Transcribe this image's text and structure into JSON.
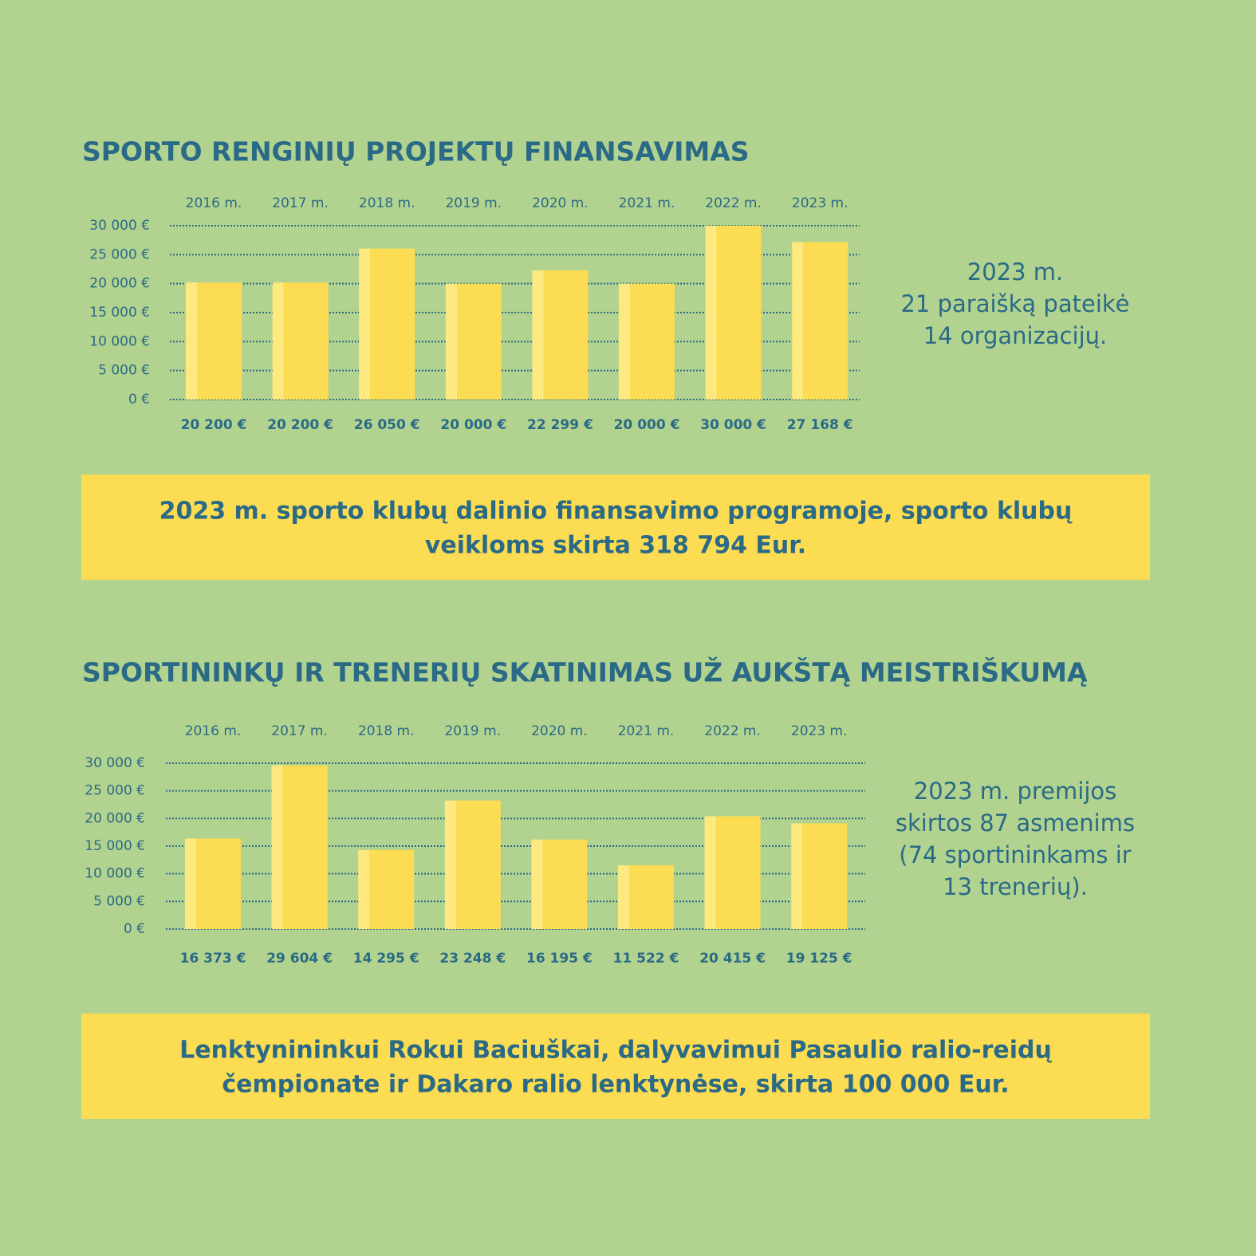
{
  "chart_data": [
    {
      "type": "bar",
      "title": "SPORTO RENGINIŲ PROJEKTŲ FINANSAVIMAS",
      "categories": [
        "2016 m.",
        "2017 m.",
        "2018 m.",
        "2019 m.",
        "2020 m.",
        "2021 m.",
        "2022 m.",
        "2023 m."
      ],
      "values": [
        20200,
        20200,
        26050,
        20000,
        22299,
        20000,
        30000,
        27168
      ],
      "value_labels": [
        "20 200 €",
        "20 200 €",
        "26 050 €",
        "20 000 €",
        "22 299 €",
        "20 000 €",
        "30 000 €",
        "27 168 €"
      ],
      "color": "#fbdc52",
      "ylim": [
        0,
        30000
      ],
      "yticks": [
        {
          "value": 0,
          "label": "0 €"
        },
        {
          "value": 5000,
          "label": "5 000 €"
        },
        {
          "value": 10000,
          "label": "10 000 €"
        },
        {
          "value": 15000,
          "label": "15 000 €"
        },
        {
          "value": 20000,
          "label": "20 000 €"
        },
        {
          "value": 25000,
          "label": "25 000 €"
        },
        {
          "value": 30000,
          "label": "30 000 €"
        }
      ],
      "grid": true,
      "annotation": [
        "2023 m.",
        "21 paraišką pateikė",
        "14 organizacijų."
      ]
    },
    {
      "type": "bar",
      "title": "SPORTININKŲ IR TRENERIŲ SKATINIMAS UŽ AUKŠTĄ MEISTRIŠKUMĄ",
      "categories": [
        "2016 m.",
        "2017 m.",
        "2018 m.",
        "2019 m.",
        "2020 m.",
        "2021 m.",
        "2022 m.",
        "2023 m."
      ],
      "values": [
        16373,
        29604,
        14295,
        23248,
        16195,
        11522,
        20415,
        19125
      ],
      "value_labels": [
        "16 373 €",
        "29 604 €",
        "14 295 €",
        "23 248 €",
        "16 195 €",
        "11 522 €",
        "20 415 €",
        "19 125 €"
      ],
      "color": "#fbdc52",
      "ylim": [
        0,
        30000
      ],
      "yticks": [
        {
          "value": 0,
          "label": "0 €"
        },
        {
          "value": 5000,
          "label": "5 000 €"
        },
        {
          "value": 10000,
          "label": "10 000 €"
        },
        {
          "value": 15000,
          "label": "15 000 €"
        },
        {
          "value": 20000,
          "label": "20 000 €"
        },
        {
          "value": 25000,
          "label": "25 000 €"
        },
        {
          "value": 30000,
          "label": "30 000 €"
        }
      ],
      "grid": true,
      "annotation": [
        "2023 m. premijos",
        "skirtos 87 asmenims",
        "(74 sportininkams ir",
        "13 trenerių)."
      ]
    }
  ],
  "banners": [
    [
      "2023 m. sporto klubų dalinio finansavimo programoje, sporto klubų",
      "veikloms skirta 318 794 Eur."
    ],
    [
      "Lenktynininkui Rokui Baciuškai, dalyvavimui Pasaulio ralio-reidų",
      "čempionate ir Dakaro ralio lenktynėse, skirta 100 000 Eur."
    ]
  ]
}
